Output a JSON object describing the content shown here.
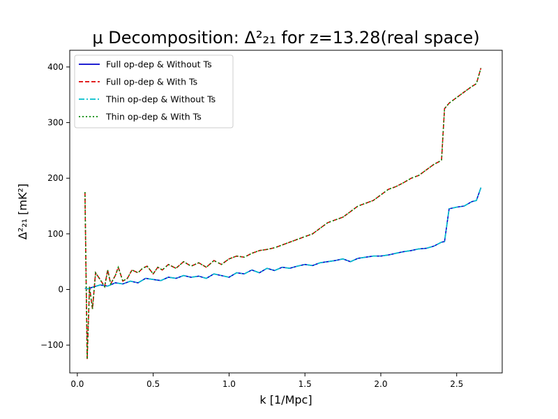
{
  "chart_data": {
    "type": "line",
    "title": "μ Decomposition: Δ²₂₁ for z=13.28(real space)",
    "xlabel": "k [1/Mpc]",
    "ylabel": "Δ²₂₁ [mK²]",
    "xlim": [
      -0.05,
      2.8
    ],
    "ylim": [
      -150,
      430
    ],
    "xticks": [
      0.0,
      0.5,
      1.0,
      1.5,
      2.0,
      2.5
    ],
    "yticks": [
      -100,
      0,
      100,
      200,
      300,
      400
    ],
    "xtick_labels": [
      "0.0",
      "0.5",
      "1.0",
      "1.5",
      "2.0",
      "2.5"
    ],
    "ytick_labels": [
      "−100",
      "0",
      "100",
      "200",
      "300",
      "400"
    ],
    "grid": false,
    "legend_position": "upper-left",
    "series": [
      {
        "name": "Full op-dep & Without Ts",
        "color": "#0000cc",
        "style": "solid",
        "x": [
          0.05,
          0.07,
          0.1,
          0.15,
          0.2,
          0.25,
          0.3,
          0.35,
          0.4,
          0.45,
          0.5,
          0.55,
          0.6,
          0.65,
          0.7,
          0.75,
          0.8,
          0.85,
          0.9,
          0.95,
          1.0,
          1.05,
          1.1,
          1.15,
          1.2,
          1.25,
          1.3,
          1.35,
          1.4,
          1.45,
          1.5,
          1.55,
          1.6,
          1.65,
          1.7,
          1.75,
          1.8,
          1.85,
          1.9,
          1.95,
          2.0,
          2.05,
          2.1,
          2.15,
          2.2,
          2.25,
          2.3,
          2.35,
          2.4,
          2.42,
          2.45,
          2.5,
          2.55,
          2.6,
          2.63,
          2.66
        ],
        "y": [
          2,
          1,
          4,
          8,
          6,
          12,
          10,
          15,
          12,
          20,
          18,
          16,
          22,
          20,
          25,
          22,
          24,
          20,
          28,
          25,
          22,
          30,
          28,
          35,
          30,
          38,
          34,
          40,
          38,
          42,
          45,
          43,
          48,
          50,
          52,
          55,
          50,
          56,
          58,
          60,
          60,
          62,
          65,
          68,
          70,
          73,
          74,
          78,
          85,
          86,
          145,
          148,
          150,
          158,
          160,
          183
        ]
      },
      {
        "name": "Full op-dep & With Ts",
        "color": "#dd0000",
        "style": "dashed",
        "x": [
          0.05,
          0.065,
          0.08,
          0.1,
          0.12,
          0.15,
          0.18,
          0.2,
          0.22,
          0.25,
          0.27,
          0.3,
          0.33,
          0.36,
          0.4,
          0.43,
          0.46,
          0.5,
          0.53,
          0.56,
          0.6,
          0.65,
          0.7,
          0.75,
          0.8,
          0.85,
          0.9,
          0.95,
          1.0,
          1.05,
          1.1,
          1.15,
          1.2,
          1.25,
          1.3,
          1.35,
          1.4,
          1.45,
          1.5,
          1.55,
          1.6,
          1.65,
          1.7,
          1.75,
          1.8,
          1.85,
          1.9,
          1.95,
          2.0,
          2.05,
          2.1,
          2.15,
          2.2,
          2.25,
          2.3,
          2.35,
          2.4,
          2.42,
          2.45,
          2.5,
          2.55,
          2.6,
          2.63,
          2.66
        ],
        "y": [
          175,
          -125,
          5,
          -35,
          30,
          18,
          5,
          35,
          10,
          25,
          40,
          15,
          20,
          35,
          30,
          38,
          42,
          28,
          40,
          35,
          45,
          38,
          50,
          42,
          48,
          40,
          52,
          45,
          55,
          60,
          58,
          65,
          70,
          72,
          75,
          80,
          85,
          90,
          95,
          100,
          110,
          120,
          125,
          130,
          140,
          150,
          155,
          160,
          170,
          180,
          185,
          192,
          200,
          205,
          215,
          225,
          232,
          325,
          335,
          345,
          355,
          365,
          370,
          398
        ]
      },
      {
        "name": "Thin op-dep & Without Ts",
        "color": "#00bfcc",
        "style": "dashdot",
        "x": [
          0.05,
          0.07,
          0.1,
          0.15,
          0.2,
          0.25,
          0.3,
          0.35,
          0.4,
          0.45,
          0.5,
          0.55,
          0.6,
          0.65,
          0.7,
          0.75,
          0.8,
          0.85,
          0.9,
          0.95,
          1.0,
          1.05,
          1.1,
          1.15,
          1.2,
          1.25,
          1.3,
          1.35,
          1.4,
          1.45,
          1.5,
          1.55,
          1.6,
          1.65,
          1.7,
          1.75,
          1.8,
          1.85,
          1.9,
          1.95,
          2.0,
          2.05,
          2.1,
          2.15,
          2.2,
          2.25,
          2.3,
          2.35,
          2.4,
          2.42,
          2.45,
          2.5,
          2.55,
          2.6,
          2.63,
          2.66
        ],
        "y": [
          2,
          1,
          4,
          8,
          6,
          12,
          10,
          15,
          12,
          20,
          18,
          16,
          22,
          20,
          25,
          22,
          24,
          20,
          28,
          25,
          22,
          30,
          28,
          35,
          30,
          38,
          34,
          40,
          38,
          42,
          45,
          43,
          48,
          50,
          52,
          55,
          50,
          56,
          58,
          60,
          60,
          62,
          65,
          68,
          70,
          73,
          74,
          78,
          85,
          86,
          145,
          148,
          150,
          158,
          160,
          183
        ]
      },
      {
        "name": "Thin op-dep & With Ts",
        "color": "#008800",
        "style": "dotted",
        "x": [
          0.05,
          0.065,
          0.08,
          0.1,
          0.12,
          0.15,
          0.18,
          0.2,
          0.22,
          0.25,
          0.27,
          0.3,
          0.33,
          0.36,
          0.4,
          0.43,
          0.46,
          0.5,
          0.53,
          0.56,
          0.6,
          0.65,
          0.7,
          0.75,
          0.8,
          0.85,
          0.9,
          0.95,
          1.0,
          1.05,
          1.1,
          1.15,
          1.2,
          1.25,
          1.3,
          1.35,
          1.4,
          1.45,
          1.5,
          1.55,
          1.6,
          1.65,
          1.7,
          1.75,
          1.8,
          1.85,
          1.9,
          1.95,
          2.0,
          2.05,
          2.1,
          2.15,
          2.2,
          2.25,
          2.3,
          2.35,
          2.4,
          2.42,
          2.45,
          2.5,
          2.55,
          2.6,
          2.63,
          2.66
        ],
        "y": [
          175,
          -125,
          5,
          -35,
          30,
          18,
          5,
          35,
          10,
          25,
          40,
          15,
          20,
          35,
          30,
          38,
          42,
          28,
          40,
          35,
          45,
          38,
          50,
          42,
          48,
          40,
          52,
          45,
          55,
          60,
          58,
          65,
          70,
          72,
          75,
          80,
          85,
          90,
          95,
          100,
          110,
          120,
          125,
          130,
          140,
          150,
          155,
          160,
          170,
          180,
          185,
          192,
          200,
          205,
          215,
          225,
          232,
          325,
          335,
          345,
          355,
          365,
          370,
          398
        ]
      }
    ]
  }
}
